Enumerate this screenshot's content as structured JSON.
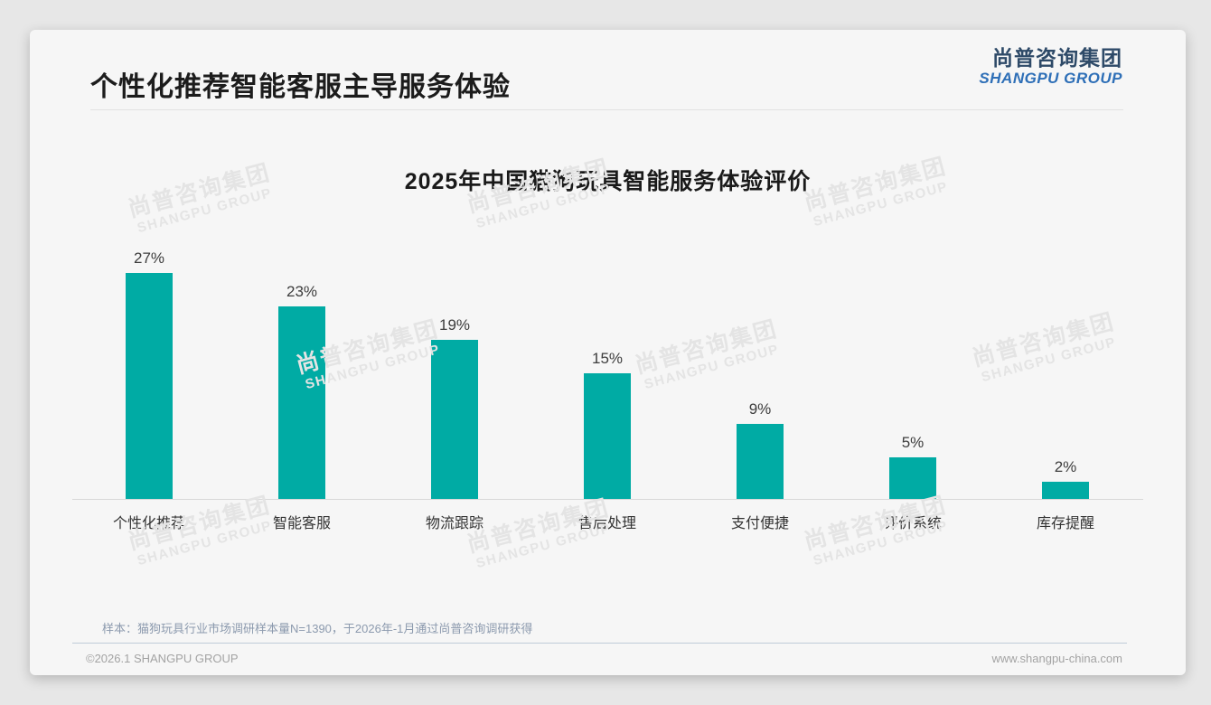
{
  "page": {
    "title": "个性化推荐智能客服主导服务体验",
    "logo": {
      "cn": "尚普咨询集团",
      "en": "SHANGPU GROUP"
    },
    "watermark": {
      "cn": "尚普咨询集团",
      "en": "SHANGPU GROUP"
    },
    "source_note": "样本：猫狗玩具行业市场调研样本量N=1390，于2026年-1月通过尚普咨询调研获得",
    "footer": {
      "copyright": "©2026.1 SHANGPU GROUP",
      "website": "www.shangpu-china.com"
    }
  },
  "chart_data": {
    "type": "bar",
    "title": "2025年中国猫狗玩具智能服务体验评价",
    "categories": [
      "个性化推荐",
      "智能客服",
      "物流跟踪",
      "售后处理",
      "支付便捷",
      "评价系统",
      "库存提醒"
    ],
    "values": [
      27,
      23,
      19,
      15,
      9,
      5,
      2
    ],
    "data_labels": [
      "27%",
      "23%",
      "19%",
      "15%",
      "9%",
      "5%",
      "2%"
    ],
    "unit": "%",
    "xlabel": "",
    "ylabel": "",
    "ylim": [
      0,
      28
    ],
    "grid": false,
    "legend": false,
    "bar_color": "#00aba4"
  },
  "colors": {
    "accent_teal": "#00aba4",
    "logo_navy": "#2e4a68",
    "logo_blue": "#2e6fb7",
    "note_gray_blue": "#8c9aae",
    "footer_gray": "#a3a3a3"
  }
}
